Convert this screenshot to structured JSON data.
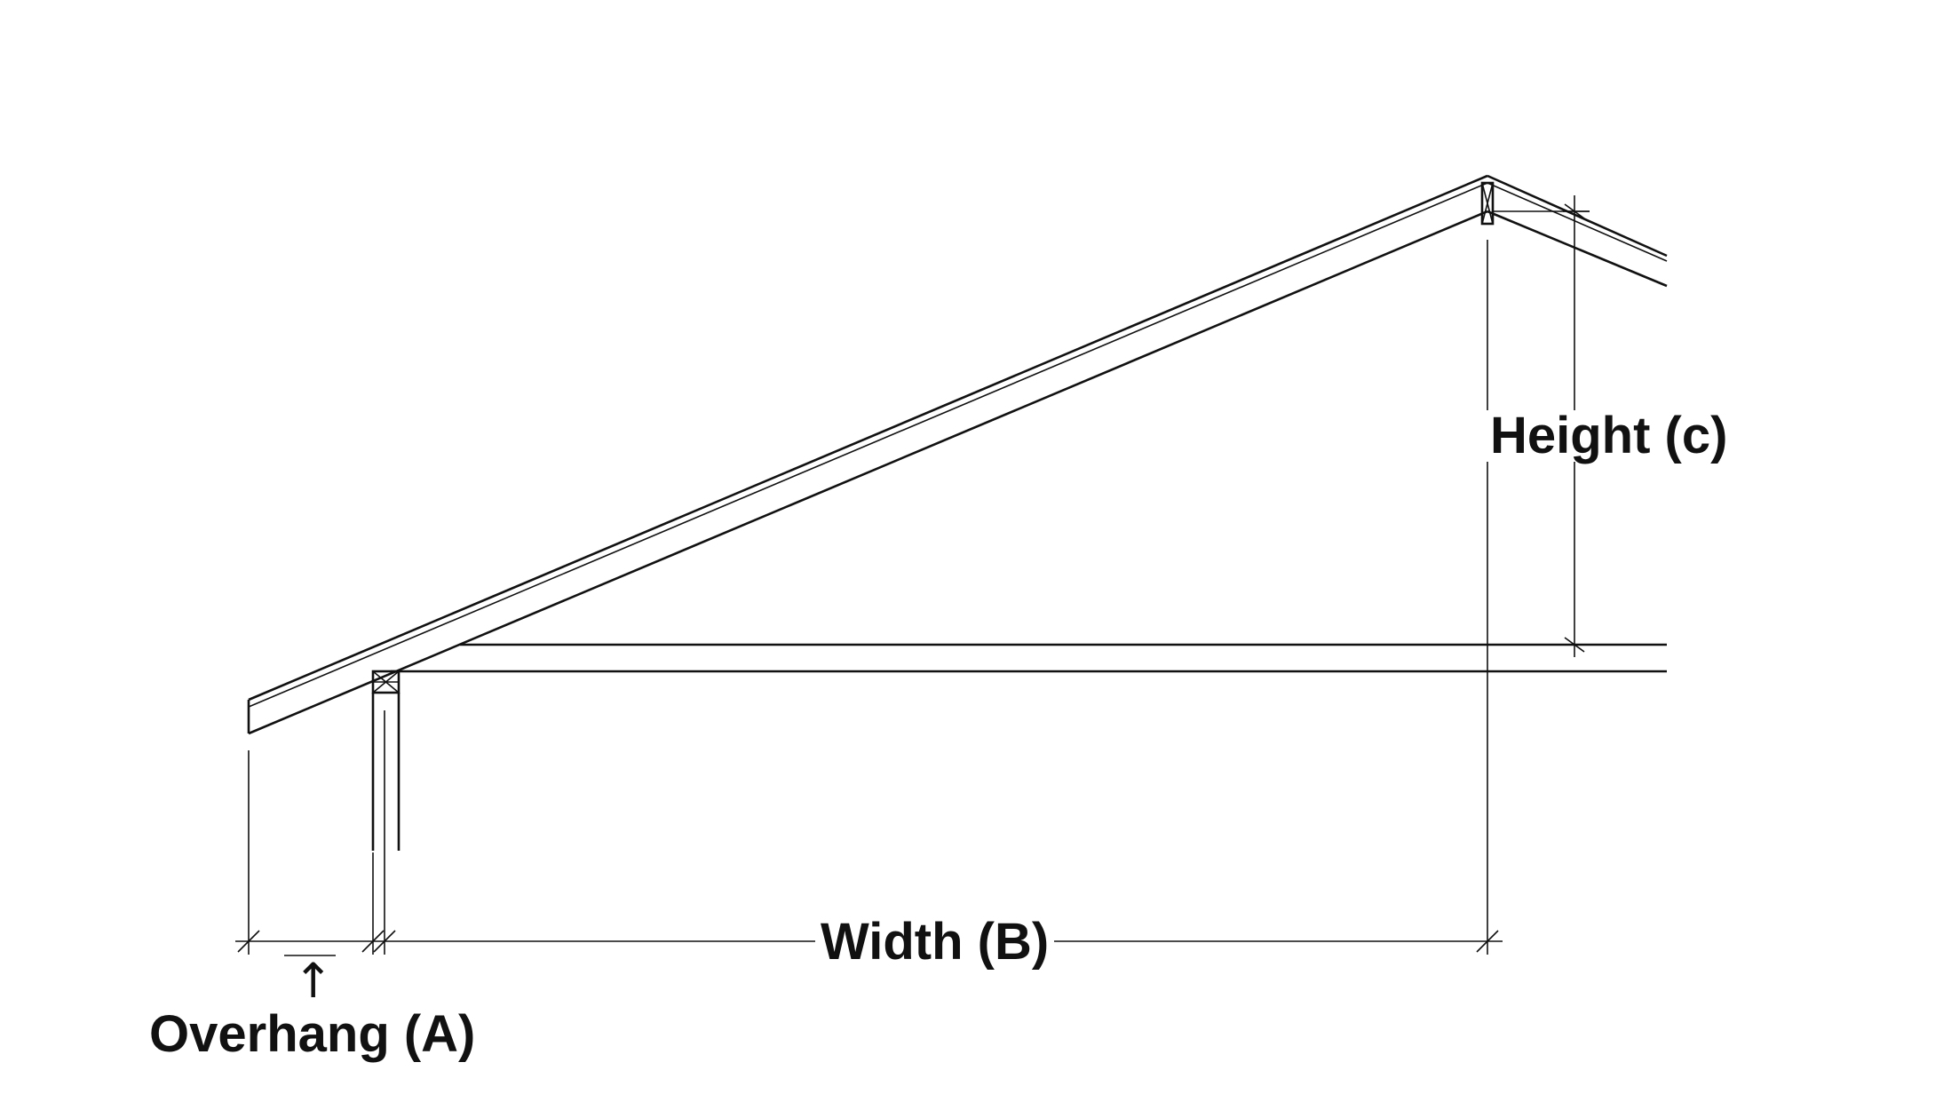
{
  "labels": {
    "width": "Width (B)",
    "height": "Height (c)",
    "overhang": "Overhang (A)",
    "overhang_arrow": "↑"
  },
  "colors": {
    "line": "#111111",
    "background": "#ffffff"
  },
  "icons": {
    "overhang_arrow": "up-arrow-icon"
  }
}
